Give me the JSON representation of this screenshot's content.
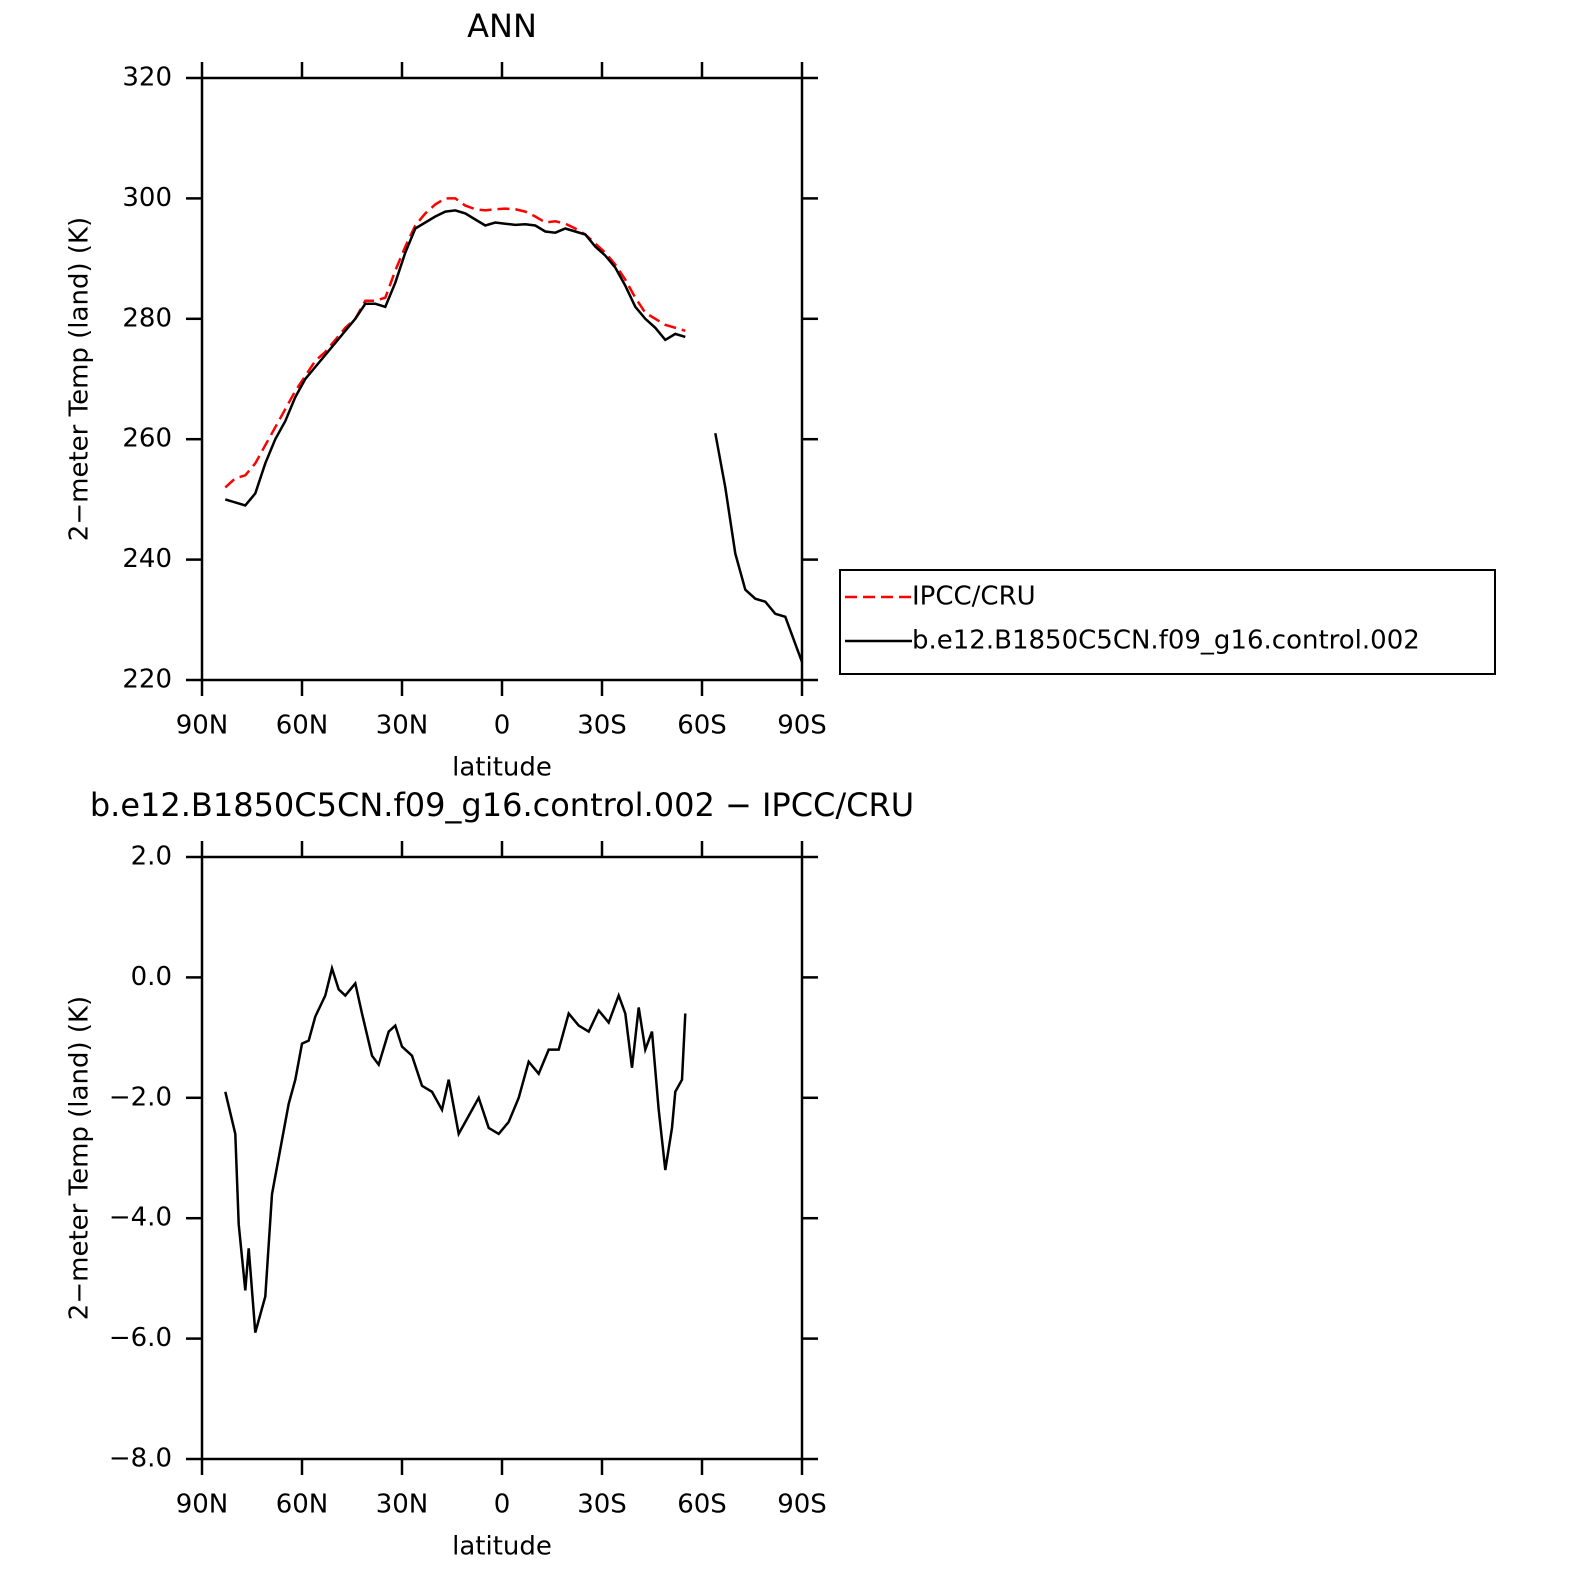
{
  "chart_data": [
    {
      "type": "line",
      "title": "ANN",
      "xlabel": "latitude",
      "ylabel": "2−meter Temp (land) (K)",
      "x": [
        83,
        80,
        77,
        74,
        71,
        68,
        65,
        62,
        59,
        56,
        53,
        50,
        47,
        44,
        41,
        38,
        35,
        32,
        29,
        26,
        23,
        20,
        17,
        14,
        11,
        8,
        5,
        2,
        -1,
        -4,
        -7,
        -10,
        -13,
        -16,
        -19,
        -22,
        -25,
        -28,
        -31,
        -34,
        -37,
        -40,
        -43,
        -46,
        -49,
        -52,
        -55,
        -60,
        -64,
        -67,
        -70,
        -73,
        -76,
        -79,
        -82,
        -85,
        -88,
        -90
      ],
      "series": [
        {
          "name": "IPCC/CRU",
          "color": "#ff0000",
          "dashed": true,
          "values": [
            252,
            253.5,
            254,
            256,
            259,
            262,
            265,
            268,
            270.5,
            273,
            274.5,
            276.5,
            278.5,
            280,
            283,
            283,
            283.5,
            288,
            292,
            295.5,
            297.5,
            299,
            300,
            300,
            298.8,
            298.2,
            298,
            298.2,
            298.3,
            298.2,
            297.8,
            297,
            296,
            296.2,
            295.8,
            295,
            294,
            292.5,
            291,
            289,
            286.5,
            283.5,
            281,
            280,
            279,
            278.5,
            278,
            null,
            null,
            null,
            null,
            null,
            null,
            null,
            null,
            null,
            null,
            null
          ]
        },
        {
          "name": "b.e12.B1850C5CN.f09_g16.control.002",
          "color": "#000000",
          "dashed": false,
          "values": [
            250,
            249.5,
            249,
            251,
            256,
            260,
            263,
            267,
            270,
            272,
            274,
            276,
            278,
            280,
            282.5,
            282.5,
            282,
            286,
            291,
            295,
            296,
            297,
            297.8,
            298,
            297.5,
            296.5,
            295.5,
            296,
            295.8,
            295.6,
            295.7,
            295.5,
            294.5,
            294.3,
            295,
            294.5,
            294,
            292,
            290.5,
            288.5,
            285.5,
            282,
            280,
            278.5,
            276.5,
            277.5,
            277,
            null,
            261,
            252,
            241,
            235,
            233.5,
            233,
            231,
            230.5,
            226,
            223
          ]
        }
      ],
      "xlim": [
        90,
        -90
      ],
      "xticks": [
        {
          "value": 90,
          "label": "90N"
        },
        {
          "value": 60,
          "label": "60N"
        },
        {
          "value": 30,
          "label": "30N"
        },
        0,
        {
          "value": -30,
          "label": "30S"
        },
        {
          "value": -60,
          "label": "60S"
        },
        {
          "value": -90,
          "label": "90S"
        }
      ],
      "ylim": [
        220,
        320
      ],
      "yticks": [
        220,
        240,
        260,
        280,
        300,
        320
      ],
      "legend": "outside-right"
    },
    {
      "type": "line",
      "title": "b.e12.B1850C5CN.f09_g16.control.002 − IPCC/CRU",
      "xlabel": "latitude",
      "ylabel": "2−meter Temp (land) (K)",
      "x": [
        83,
        80,
        79,
        77,
        76,
        74,
        71,
        69,
        66,
        64,
        62,
        60,
        58,
        56,
        53,
        51,
        49,
        47,
        44,
        42,
        39,
        37,
        34,
        32,
        30,
        27,
        24,
        21,
        18,
        16,
        13,
        10,
        7,
        4,
        1,
        -2,
        -5,
        -8,
        -11,
        -14,
        -17,
        -20,
        -23,
        -26,
        -29,
        -32,
        -35,
        -37,
        -39,
        -41,
        -43,
        -45,
        -47,
        -49,
        -51,
        -52,
        -54,
        -55
      ],
      "series": [
        {
          "color": "#000000",
          "dashed": false,
          "values": [
            -1.9,
            -2.6,
            -4.1,
            -5.2,
            -4.5,
            -5.9,
            -5.3,
            -3.6,
            -2.7,
            -2.1,
            -1.7,
            -1.1,
            -1.05,
            -0.65,
            -0.3,
            0.15,
            -0.2,
            -0.3,
            -0.1,
            -0.6,
            -1.3,
            -1.45,
            -0.9,
            -0.8,
            -1.15,
            -1.3,
            -1.8,
            -1.9,
            -2.2,
            -1.7,
            -2.6,
            -2.3,
            -2.0,
            -2.5,
            -2.6,
            -2.4,
            -2.0,
            -1.4,
            -1.6,
            -1.2,
            -1.2,
            -0.6,
            -0.8,
            -0.9,
            -0.55,
            -0.75,
            -0.3,
            -0.6,
            -1.5,
            -0.5,
            -1.2,
            -0.9,
            -2.2,
            -3.2,
            -2.5,
            -1.9,
            -1.7,
            -0.6
          ]
        }
      ],
      "xlim": [
        90,
        -90
      ],
      "xticks": [
        {
          "value": 90,
          "label": "90N"
        },
        {
          "value": 60,
          "label": "60N"
        },
        {
          "value": 30,
          "label": "30N"
        },
        0,
        {
          "value": -30,
          "label": "30S"
        },
        {
          "value": -60,
          "label": "60S"
        },
        {
          "value": -90,
          "label": "90S"
        }
      ],
      "ylim": [
        -8,
        2
      ],
      "yticks": [
        {
          "value": -8,
          "label": "−8.0"
        },
        {
          "value": -6,
          "label": "−6.0"
        },
        {
          "value": -4,
          "label": "−4.0"
        },
        {
          "value": -2,
          "label": "−2.0"
        },
        {
          "value": 0,
          "label": "0.0"
        },
        {
          "value": 2,
          "label": "2.0"
        }
      ]
    }
  ]
}
